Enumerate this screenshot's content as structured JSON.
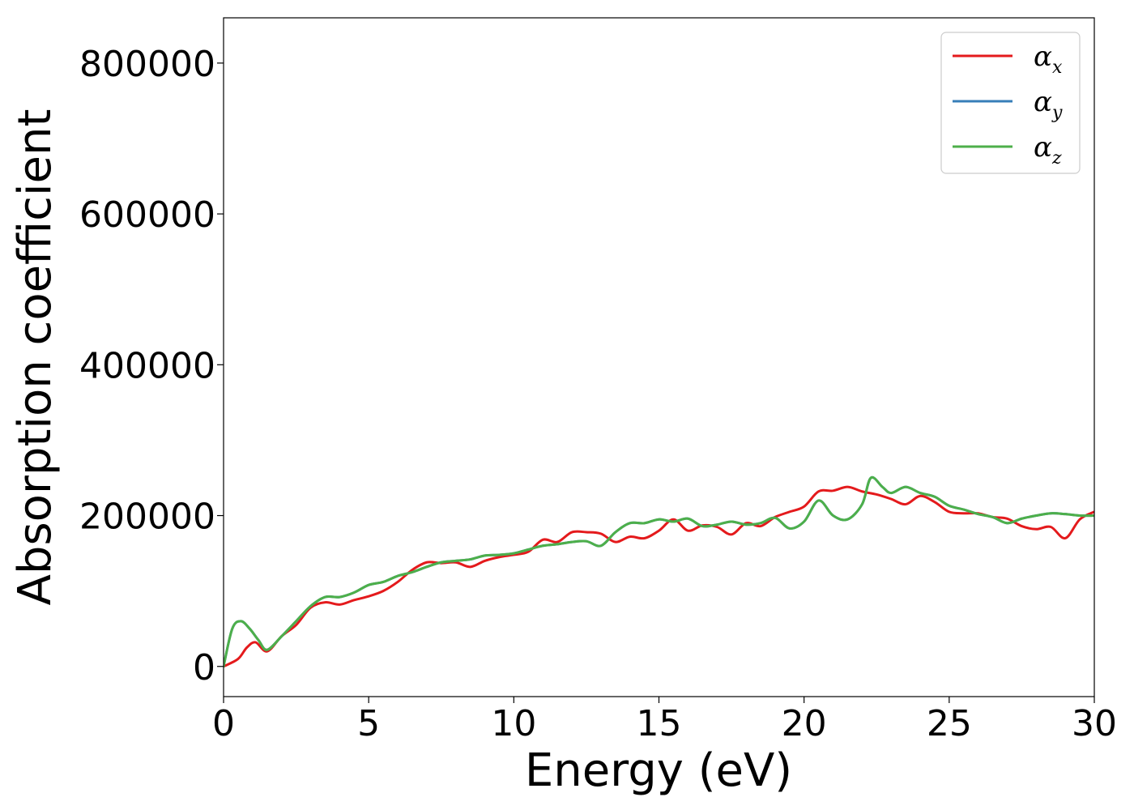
{
  "chart_data": {
    "type": "line",
    "xlabel": "Energy (eV)",
    "ylabel": "Absorption coefficient",
    "xlim": [
      0,
      30
    ],
    "ylim": [
      -40000,
      860000
    ],
    "x_ticks": [
      "0",
      "5",
      "10",
      "15",
      "20",
      "25",
      "30"
    ],
    "y_ticks": [
      "0",
      "200000",
      "400000",
      "600000",
      "800000"
    ],
    "grid": false,
    "legend_position": "top-right",
    "series": [
      {
        "name": "αx",
        "symbol": "α",
        "subscript": "x",
        "color": "#e41a1c",
        "x": [
          0,
          0.5,
          0.8,
          1.1,
          1.5,
          2.0,
          2.5,
          3.0,
          3.5,
          4.0,
          4.5,
          5.0,
          5.5,
          6.0,
          6.5,
          7.0,
          7.5,
          8.0,
          8.5,
          9.0,
          9.5,
          10.0,
          10.5,
          11.0,
          11.5,
          12.0,
          12.5,
          13.0,
          13.5,
          14.0,
          14.5,
          15.0,
          15.5,
          16.0,
          16.5,
          17.0,
          17.5,
          18.0,
          18.5,
          19.0,
          19.5,
          20.0,
          20.5,
          21.0,
          21.5,
          22.0,
          22.5,
          23.0,
          23.5,
          24.0,
          24.5,
          25.0,
          25.5,
          26.0,
          26.5,
          27.0,
          27.5,
          28.0,
          28.5,
          29.0,
          29.5,
          30.0
        ],
        "values": [
          0,
          10000,
          25000,
          32000,
          20000,
          40000,
          55000,
          78000,
          85000,
          82000,
          88000,
          93000,
          100000,
          112000,
          128000,
          138000,
          137000,
          138000,
          132000,
          140000,
          145000,
          148000,
          152000,
          168000,
          165000,
          178000,
          178000,
          176000,
          165000,
          172000,
          170000,
          180000,
          195000,
          180000,
          187000,
          185000,
          175000,
          190000,
          186000,
          198000,
          205000,
          212000,
          232000,
          233000,
          238000,
          232000,
          228000,
          222000,
          215000,
          226000,
          218000,
          205000,
          203000,
          203000,
          198000,
          196000,
          186000,
          182000,
          185000,
          170000,
          195000,
          205000
        ]
      },
      {
        "name": "αy",
        "symbol": "α",
        "subscript": "y",
        "color": "#377eb8",
        "x": [
          0,
          0.3,
          0.6,
          0.9,
          1.2,
          1.5,
          2.0,
          2.5,
          3.0,
          3.5,
          4.0,
          4.5,
          5.0,
          5.5,
          6.0,
          6.5,
          7.0,
          7.5,
          8.0,
          8.5,
          9.0,
          9.5,
          10.0,
          10.5,
          11.0,
          11.5,
          12.0,
          12.5,
          13.0,
          13.5,
          14.0,
          14.5,
          15.0,
          15.5,
          16.0,
          16.5,
          17.0,
          17.5,
          18.0,
          18.5,
          19.0,
          19.5,
          20.0,
          20.5,
          21.0,
          21.5,
          22.0,
          22.3,
          22.7,
          23.0,
          23.5,
          24.0,
          24.5,
          25.0,
          25.5,
          26.0,
          26.5,
          27.0,
          27.5,
          28.0,
          28.5,
          29.0,
          29.5,
          30.0
        ],
        "values": [
          0,
          50000,
          60000,
          50000,
          35000,
          22000,
          40000,
          60000,
          80000,
          92000,
          92000,
          98000,
          108000,
          112000,
          120000,
          125000,
          132000,
          138000,
          140000,
          142000,
          147000,
          148000,
          150000,
          155000,
          160000,
          162000,
          165000,
          166000,
          160000,
          178000,
          190000,
          190000,
          195000,
          192000,
          196000,
          186000,
          188000,
          192000,
          188000,
          190000,
          197000,
          183000,
          192000,
          220000,
          200000,
          195000,
          215000,
          250000,
          238000,
          230000,
          238000,
          230000,
          225000,
          213000,
          208000,
          202000,
          198000,
          190000,
          196000,
          200000,
          203000,
          202000,
          200000,
          200000
        ]
      },
      {
        "name": "αz",
        "symbol": "α",
        "subscript": "z",
        "color": "#4daf4a",
        "x": [
          0,
          0.3,
          0.6,
          0.9,
          1.2,
          1.5,
          2.0,
          2.5,
          3.0,
          3.5,
          4.0,
          4.5,
          5.0,
          5.5,
          6.0,
          6.5,
          7.0,
          7.5,
          8.0,
          8.5,
          9.0,
          9.5,
          10.0,
          10.5,
          11.0,
          11.5,
          12.0,
          12.5,
          13.0,
          13.5,
          14.0,
          14.5,
          15.0,
          15.5,
          16.0,
          16.5,
          17.0,
          17.5,
          18.0,
          18.5,
          19.0,
          19.5,
          20.0,
          20.5,
          21.0,
          21.5,
          22.0,
          22.3,
          22.7,
          23.0,
          23.5,
          24.0,
          24.5,
          25.0,
          25.5,
          26.0,
          26.5,
          27.0,
          27.5,
          28.0,
          28.5,
          29.0,
          29.5,
          30.0
        ],
        "values": [
          0,
          50000,
          60000,
          50000,
          35000,
          22000,
          40000,
          60000,
          80000,
          92000,
          92000,
          98000,
          108000,
          112000,
          120000,
          125000,
          132000,
          138000,
          140000,
          142000,
          147000,
          148000,
          150000,
          155000,
          160000,
          162000,
          165000,
          166000,
          160000,
          178000,
          190000,
          190000,
          195000,
          192000,
          196000,
          186000,
          188000,
          192000,
          188000,
          190000,
          197000,
          183000,
          192000,
          220000,
          200000,
          195000,
          215000,
          250000,
          238000,
          230000,
          238000,
          230000,
          225000,
          213000,
          208000,
          202000,
          198000,
          190000,
          196000,
          200000,
          203000,
          202000,
          200000,
          200000
        ]
      }
    ]
  }
}
